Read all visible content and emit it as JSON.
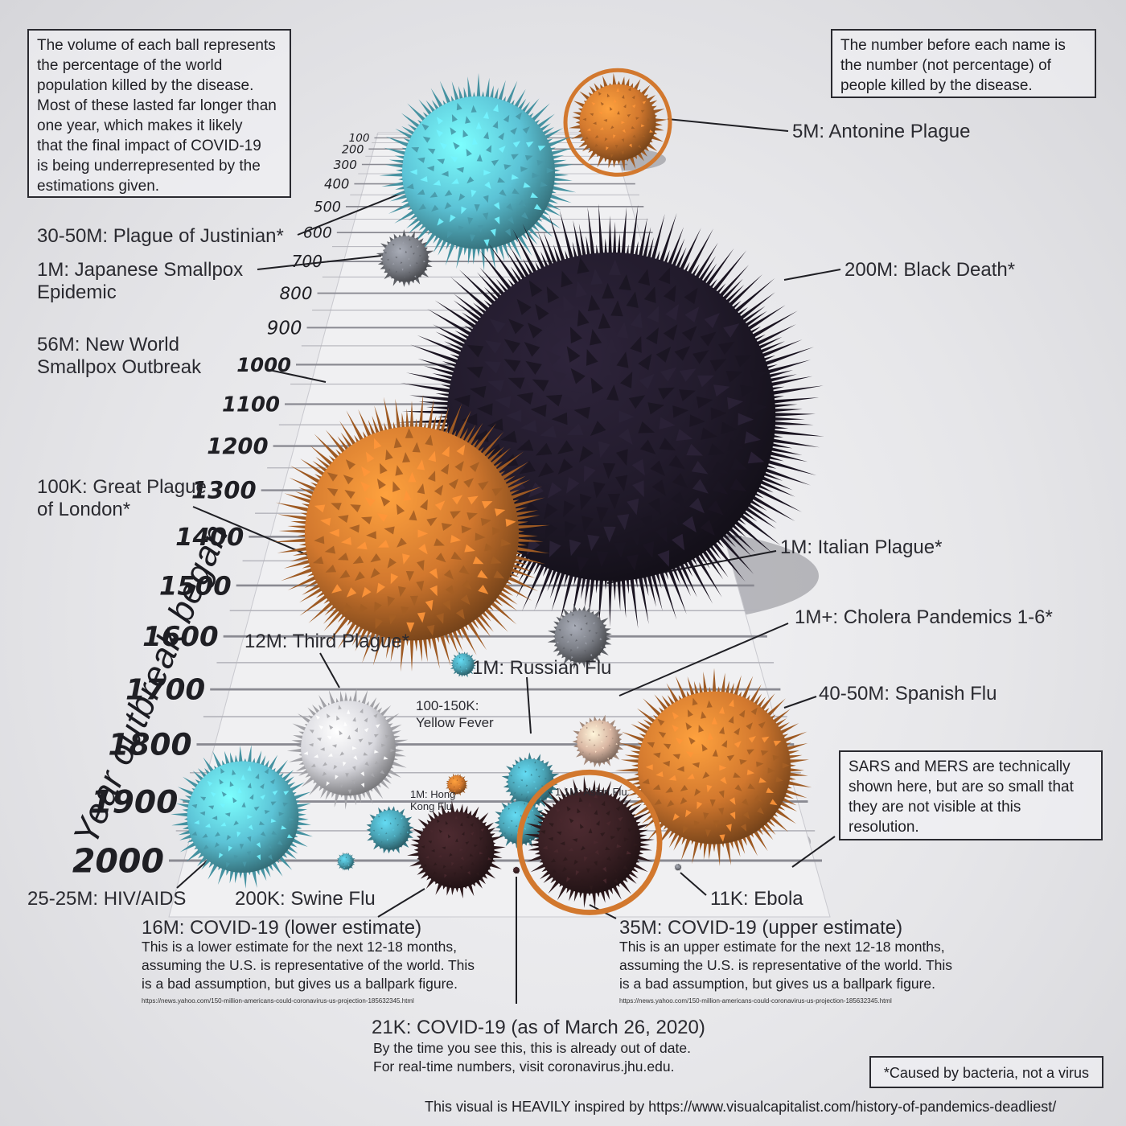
{
  "notes": {
    "left": "The volume of each ball represents\nthe percentage of the world\npopulation killed by the disease.\nMost of these lasted far longer than\none year, which makes it likely\nthat the final impact of COVID-19\nis being underrepresented by the\nestimations given.",
    "right": "The number before each name is\nthe number (not percentage) of\npeople killed by the disease.",
    "sars": "SARS and MERS are technically\nshown here, but are so small that\nthey are not visible at this\nresolution.",
    "bacteria": "*Caused by bacteria, not a virus"
  },
  "axis_title": "Year outbreak began",
  "credit": "This visual is HEAVILY inspired by https://www.visualcapitalist.com/history-of-pandemics-deadliest/",
  "covid_lower": {
    "title": "16M: COVID-19 (lower estimate)",
    "body": "This is a lower estimate for the next 12-18 months,\nassuming the U.S. is representative of the world. This\nis a bad assumption, but gives us a ballpark figure.",
    "url": "https://news.yahoo.com/150-million-americans-could-coronavirus-us-projection-185632345.html"
  },
  "covid_upper": {
    "title": "35M: COVID-19 (upper estimate)",
    "body": "This is an upper estimate for the next 12-18 months,\nassuming the U.S. is representative of the world. This\nis a bad assumption, but gives us a ballpark figure.",
    "url": "https://news.yahoo.com/150-million-americans-could-coronavirus-us-projection-185632345.html"
  },
  "covid_current": {
    "title": "21K: COVID-19 (as of March 26, 2020)",
    "body": "By the time you see this, this is already out of date.\nFor real-time numbers, visit coronavirus.jhu.edu."
  },
  "colors": {
    "cyan": "#5cc3d6",
    "orange": "#d2782e",
    "dark": "#221b2c",
    "gray": "#7d8088",
    "white": "#d8d8de",
    "peach": "#d9b6a2",
    "teal": "#4aa3b5",
    "brown": "#3a2024",
    "accent_ring": "#d2782e"
  },
  "chart_data": {
    "type": "scatter",
    "encoding": "bubble volume = percentage of world population killed; label number = deaths",
    "y_axis": {
      "label": "Year outbreak began",
      "ticks": [
        100,
        200,
        300,
        400,
        500,
        600,
        700,
        800,
        900,
        1000,
        1100,
        1200,
        1300,
        1400,
        1500,
        1600,
        1700,
        1800,
        1900,
        2000
      ]
    },
    "points": [
      {
        "label": "5M: Antonine Plague",
        "year": 165,
        "color": "orange",
        "ring": true
      },
      {
        "label": "30-50M: Plague of Justinian*",
        "year": 541,
        "color": "cyan"
      },
      {
        "label": "1M: Japanese Smallpox\n        Epidemic",
        "year": 735,
        "color": "gray"
      },
      {
        "label": "200M: Black Death*",
        "year": 1347,
        "color": "dark"
      },
      {
        "label": "56M: New World\n    Smallpox Outbreak",
        "year": 1520,
        "color": "orange"
      },
      {
        "label": "100K: Great Plague\n      of London*",
        "year": 1665,
        "color": "teal"
      },
      {
        "label": "1M: Italian Plague*",
        "year": 1629,
        "color": "gray"
      },
      {
        "label": "12M: Third Plague*",
        "year": 1855,
        "color": "white"
      },
      {
        "label": "1M+: Cholera Pandemics 1-6*",
        "year": 1817,
        "color": "peach"
      },
      {
        "label": "1M: Russian Flu",
        "year": 1889,
        "color": "teal"
      },
      {
        "label": "100-150K:\nYellow Fever",
        "year": 1880,
        "color": "orange"
      },
      {
        "label": "40-50M: Spanish Flu",
        "year": 1918,
        "color": "orange"
      },
      {
        "label": "1.1M: Asian Flu",
        "year": 1957,
        "color": "teal"
      },
      {
        "label": "1M: Hong\nKong Flu",
        "year": 1968,
        "color": "teal"
      },
      {
        "label": "25-25M: HIV/AIDS",
        "year": 1981,
        "color": "cyan"
      },
      {
        "label": "200K: Swine Flu",
        "year": 2009,
        "color": "teal"
      },
      {
        "label": "16M: COVID-19 (lower estimate)",
        "year": 2019,
        "color": "brown"
      },
      {
        "label": "35M: COVID-19 (upper estimate)",
        "year": 2019,
        "color": "brown",
        "ring": true
      },
      {
        "label": "21K: COVID-19 (as of March 26, 2020)",
        "year": 2019,
        "color": "brown"
      },
      {
        "label": "11K: Ebola",
        "year": 2014,
        "color": "gray"
      }
    ]
  }
}
